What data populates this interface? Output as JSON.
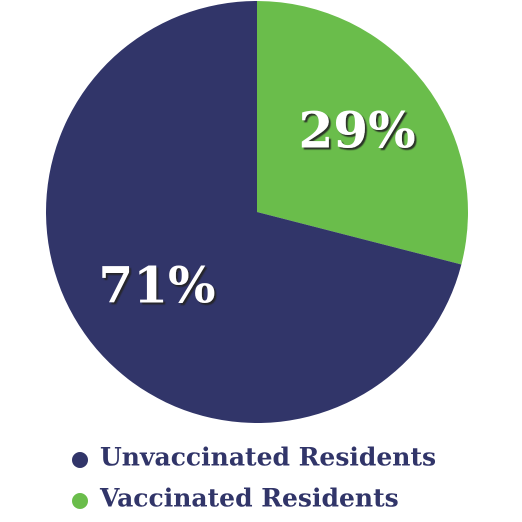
{
  "chart_data": {
    "type": "pie",
    "categories": [
      "Vaccinated Residents",
      "Unvaccinated Residents"
    ],
    "values": [
      29,
      71
    ],
    "value_labels": [
      "29%",
      "71%"
    ],
    "colors": [
      "#6abd4b",
      "#313569"
    ],
    "legend_order": [
      1,
      0
    ]
  }
}
